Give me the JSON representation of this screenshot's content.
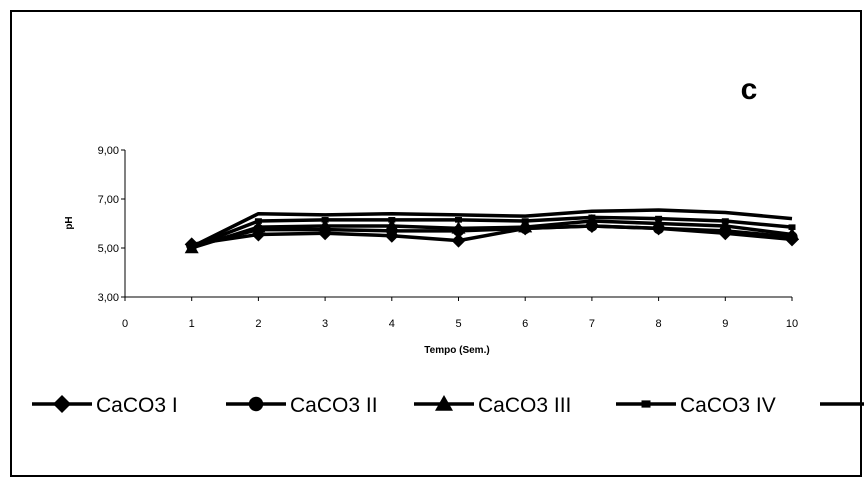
{
  "chart_data": {
    "type": "line",
    "panel_label": "c",
    "title": "",
    "xlabel": "Tempo (Sem.)",
    "ylabel": "pH",
    "xlim": [
      0,
      10
    ],
    "ylim": [
      3,
      9
    ],
    "x_ticks": [
      "0",
      "1",
      "2",
      "3",
      "4",
      "5",
      "6",
      "7",
      "8",
      "9",
      "10"
    ],
    "y_ticks": [
      "3,00",
      "5,00",
      "7,00",
      "9,00"
    ],
    "grid": false,
    "legend_position": "bottom",
    "x": [
      1,
      2,
      3,
      4,
      5,
      6,
      7,
      8,
      9,
      10
    ],
    "series": [
      {
        "name": "CaCO3 I",
        "marker": "diamond",
        "values": [
          5.15,
          5.55,
          5.6,
          5.5,
          5.3,
          5.8,
          5.9,
          5.8,
          5.6,
          5.35
        ]
      },
      {
        "name": "CaCO3 II",
        "marker": "circle",
        "values": [
          5.1,
          5.75,
          5.75,
          5.7,
          5.7,
          5.8,
          5.9,
          5.8,
          5.7,
          5.45
        ]
      },
      {
        "name": "CaCO3 III",
        "marker": "triangle",
        "values": [
          5.0,
          5.85,
          5.9,
          5.9,
          5.8,
          5.85,
          6.1,
          6.0,
          5.9,
          5.55
        ]
      },
      {
        "name": "CaCO3 IV",
        "marker": "small-square",
        "values": [
          5.05,
          6.1,
          6.15,
          6.15,
          6.15,
          6.1,
          6.25,
          6.2,
          6.1,
          5.85
        ]
      },
      {
        "name": "",
        "marker": "none",
        "values": [
          5.05,
          6.4,
          6.35,
          6.4,
          6.35,
          6.3,
          6.5,
          6.55,
          6.45,
          6.2
        ]
      }
    ]
  }
}
